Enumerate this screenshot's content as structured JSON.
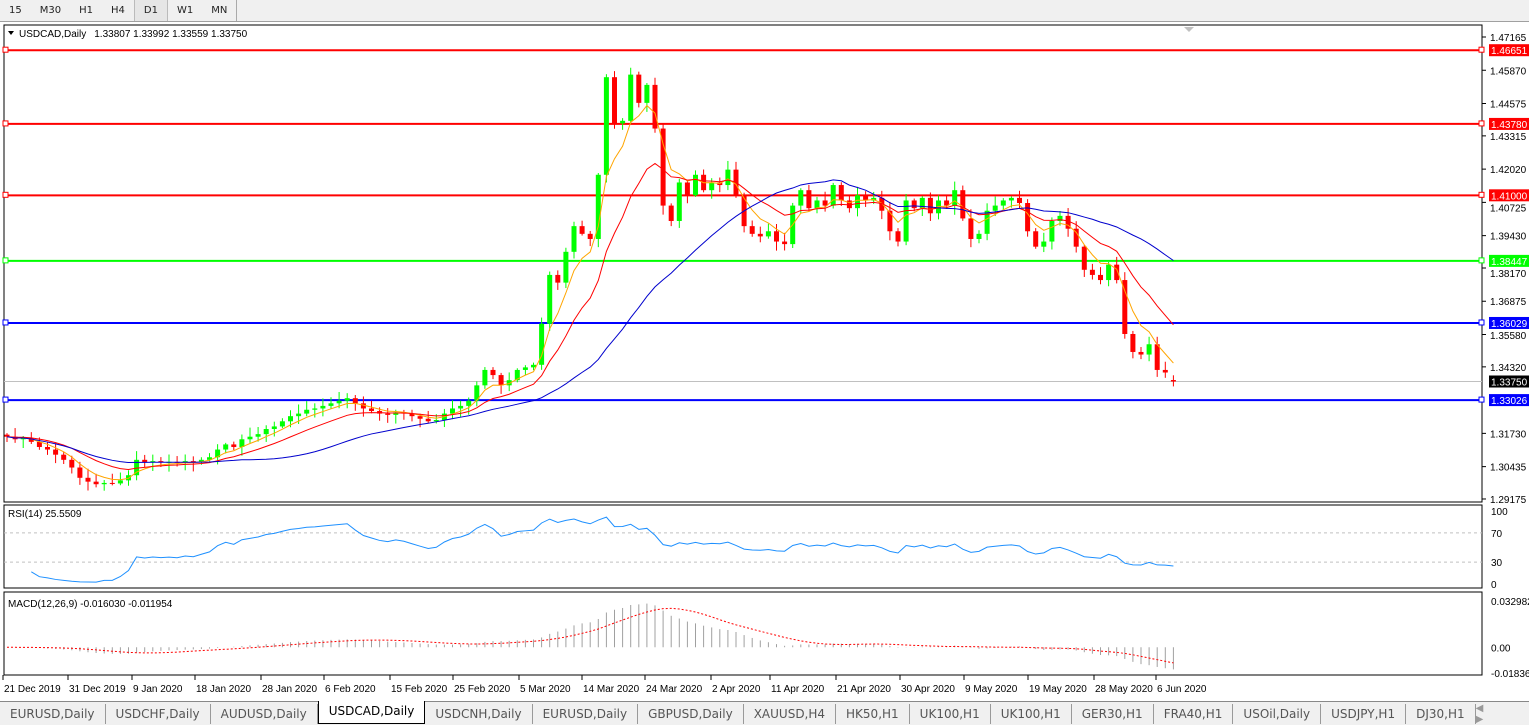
{
  "timeframes": {
    "items": [
      "15",
      "M30",
      "H1",
      "H4",
      "D1",
      "W1",
      "MN"
    ],
    "selected": "D1"
  },
  "chart": {
    "header": "USDCAD,Daily",
    "ohlc": "1.33807 1.33992 1.33559 1.33750",
    "price_ticks": [
      "1.47165",
      "1.45870",
      "1.44575",
      "1.43315",
      "1.42020",
      "1.40725",
      "1.39430",
      "1.38170",
      "1.36875",
      "1.35580",
      "1.34320",
      "1.33750",
      "1.31730",
      "1.30435",
      "1.29175"
    ],
    "current_price": "1.33750",
    "levels": [
      {
        "price": "1.46651",
        "color": "#ff0000"
      },
      {
        "price": "1.43780",
        "color": "#ff0000"
      },
      {
        "price": "1.41000",
        "color": "#ff0000"
      },
      {
        "price": "1.38447",
        "color": "#00ff00"
      },
      {
        "price": "1.36029",
        "color": "#0000ff"
      },
      {
        "price": "1.33026",
        "color": "#0000ff"
      }
    ],
    "colors": {
      "bull": "#00ff00",
      "bear": "#ff0000",
      "ma_fast": "#ffa500",
      "ma_mid": "#ff0000",
      "ma_slow": "#0000cd",
      "rsi": "#1e90ff",
      "macd_hist": "#a0a0a0",
      "macd_signal": "#ff0000"
    },
    "date_labels": [
      "21 Dec 2019",
      "31 Dec 2019",
      "9 Jan 2020",
      "18 Jan 2020",
      "28 Jan 2020",
      "6 Feb 2020",
      "15 Feb 2020",
      "25 Feb 2020",
      "5 Mar 2020",
      "14 Mar 2020",
      "24 Mar 2020",
      "2 Apr 2020",
      "11 Apr 2020",
      "21 Apr 2020",
      "30 Apr 2020",
      "9 May 2020",
      "19 May 2020",
      "28 May 2020",
      "6 Jun 2020"
    ]
  },
  "rsi": {
    "label": "RSI(14) 25.5509",
    "ticks": [
      "100",
      "70",
      "30",
      "0"
    ],
    "levels": [
      70,
      30
    ]
  },
  "macd": {
    "label": "MACD(12,26,9) -0.016030 -0.011954",
    "ticks": [
      "0.032982",
      "0.00",
      "-0.01836"
    ],
    "range": [
      -0.01836,
      0.032982
    ]
  },
  "chart_data": {
    "type": "candlestick",
    "symbol": "USDCAD",
    "timeframe": "Daily",
    "ylim": [
      1.29175,
      1.47165
    ],
    "closes": [
      1.316,
      1.315,
      1.3155,
      1.314,
      1.312,
      1.311,
      1.309,
      1.307,
      1.304,
      1.3,
      1.2985,
      1.2975,
      1.298,
      1.2978,
      1.299,
      1.301,
      1.307,
      1.306,
      1.3065,
      1.306,
      1.3062,
      1.3058,
      1.3065,
      1.306,
      1.307,
      1.308,
      1.311,
      1.313,
      1.312,
      1.315,
      1.316,
      1.317,
      1.319,
      1.32,
      1.322,
      1.324,
      1.325,
      1.3265,
      1.327,
      1.328,
      1.329,
      1.33,
      1.331,
      1.329,
      1.327,
      1.326,
      1.325,
      1.3245,
      1.3255,
      1.325,
      1.324,
      1.323,
      1.322,
      1.3225,
      1.325,
      1.327,
      1.328,
      1.33,
      1.336,
      1.342,
      1.34,
      1.336,
      1.338,
      1.342,
      1.343,
      1.344,
      1.36,
      1.379,
      1.376,
      1.388,
      1.398,
      1.395,
      1.393,
      1.418,
      1.456,
      1.438,
      1.439,
      1.457,
      1.446,
      1.453,
      1.436,
      1.406,
      1.4,
      1.415,
      1.41,
      1.418,
      1.412,
      1.415,
      1.414,
      1.42,
      1.41,
      1.398,
      1.395,
      1.394,
      1.396,
      1.392,
      1.391,
      1.406,
      1.412,
      1.405,
      1.408,
      1.406,
      1.414,
      1.408,
      1.405,
      1.41,
      1.408,
      1.409,
      1.404,
      1.396,
      1.392,
      1.408,
      1.405,
      1.409,
      1.403,
      1.408,
      1.406,
      1.412,
      1.401,
      1.393,
      1.395,
      1.404,
      1.406,
      1.408,
      1.409,
      1.407,
      1.396,
      1.39,
      1.392,
      1.4,
      1.402,
      1.397,
      1.39,
      1.381,
      1.379,
      1.377,
      1.383,
      1.377,
      1.356,
      1.349,
      1.348,
      1.352,
      1.342,
      1.341,
      1.3375
    ],
    "last_ohlc": [
      1.33807,
      1.33992,
      1.33559,
      1.3375
    ]
  },
  "tabs": {
    "items": [
      "EURUSD,Daily",
      "USDCHF,Daily",
      "AUDUSD,Daily",
      "USDCAD,Daily",
      "USDCNH,Daily",
      "EURUSD,Daily",
      "GBPUSD,Daily",
      "XAUUSD,H4",
      "HK50,H1",
      "UK100,H1",
      "UK100,H1",
      "GER30,H1",
      "FRA40,H1",
      "USOil,Daily",
      "USDJPY,H1",
      "DJ30,H1"
    ],
    "active": "USDCAD,Daily",
    "scroll": "◀ ▶"
  }
}
